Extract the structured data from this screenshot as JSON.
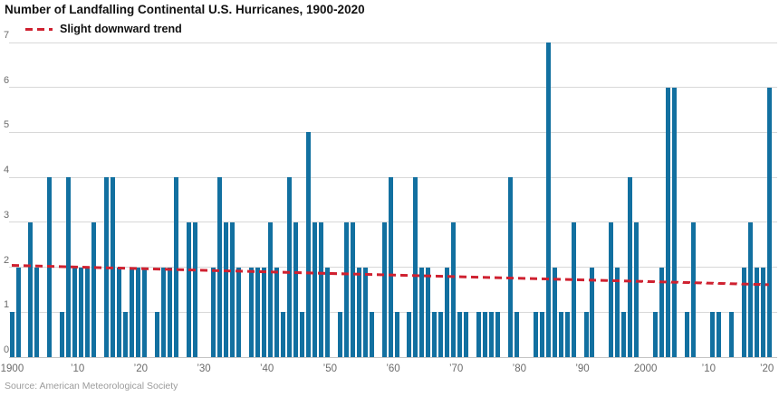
{
  "chart_data": {
    "type": "bar",
    "title": "Number of Landfalling Continental U.S. Hurricanes, 1900-2020",
    "legend_label": "Slight downward trend",
    "source": "Source: American Meteorological Society",
    "xlabel": "",
    "ylabel": "",
    "ylim": [
      0,
      7
    ],
    "y_ticks": [
      0,
      1,
      2,
      3,
      4,
      5,
      6,
      7
    ],
    "grid": "horizontal",
    "legend_position": "top-left",
    "years": [
      1900,
      1901,
      1902,
      1903,
      1904,
      1905,
      1906,
      1907,
      1908,
      1909,
      1910,
      1911,
      1912,
      1913,
      1914,
      1915,
      1916,
      1917,
      1918,
      1919,
      1920,
      1921,
      1922,
      1923,
      1924,
      1925,
      1926,
      1927,
      1928,
      1929,
      1930,
      1931,
      1932,
      1933,
      1934,
      1935,
      1936,
      1937,
      1938,
      1939,
      1940,
      1941,
      1942,
      1943,
      1944,
      1945,
      1946,
      1947,
      1948,
      1949,
      1950,
      1951,
      1952,
      1953,
      1954,
      1955,
      1956,
      1957,
      1958,
      1959,
      1960,
      1961,
      1962,
      1963,
      1964,
      1965,
      1966,
      1967,
      1968,
      1969,
      1970,
      1971,
      1972,
      1973,
      1974,
      1975,
      1976,
      1977,
      1978,
      1979,
      1980,
      1981,
      1982,
      1983,
      1984,
      1985,
      1986,
      1987,
      1988,
      1989,
      1990,
      1991,
      1992,
      1993,
      1994,
      1995,
      1996,
      1997,
      1998,
      1999,
      2000,
      2001,
      2002,
      2003,
      2004,
      2005,
      2006,
      2007,
      2008,
      2009,
      2010,
      2011,
      2012,
      2013,
      2014,
      2015,
      2016,
      2017,
      2018,
      2019,
      2020
    ],
    "values": [
      1,
      2,
      0,
      3,
      2,
      0,
      4,
      0,
      1,
      4,
      2,
      2,
      2,
      3,
      0,
      4,
      4,
      2,
      1,
      2,
      2,
      2,
      0,
      1,
      2,
      2,
      4,
      0,
      3,
      3,
      0,
      0,
      2,
      4,
      3,
      3,
      2,
      0,
      2,
      2,
      2,
      3,
      2,
      1,
      4,
      3,
      1,
      5,
      3,
      3,
      2,
      0,
      1,
      3,
      3,
      2,
      2,
      1,
      0,
      3,
      4,
      1,
      0,
      1,
      4,
      2,
      2,
      1,
      1,
      2,
      3,
      1,
      1,
      0,
      1,
      1,
      1,
      1,
      0,
      4,
      1,
      0,
      0,
      1,
      1,
      7,
      2,
      1,
      1,
      3,
      0,
      1,
      2,
      0,
      0,
      3,
      2,
      1,
      4,
      3,
      0,
      0,
      1,
      2,
      6,
      6,
      0,
      1,
      3,
      0,
      0,
      1,
      1,
      0,
      1,
      0,
      2,
      3,
      2,
      2,
      6
    ],
    "x_ticks": [
      {
        "year": 1900,
        "label": "1900"
      },
      {
        "year": 1910,
        "label": "’10"
      },
      {
        "year": 1920,
        "label": "’20"
      },
      {
        "year": 1930,
        "label": "’30"
      },
      {
        "year": 1940,
        "label": "’40"
      },
      {
        "year": 1950,
        "label": "’50"
      },
      {
        "year": 1960,
        "label": "’60"
      },
      {
        "year": 1970,
        "label": "’70"
      },
      {
        "year": 1980,
        "label": "’80"
      },
      {
        "year": 1990,
        "label": "’90"
      },
      {
        "year": 2000,
        "label": "2000"
      },
      {
        "year": 2010,
        "label": "’10"
      },
      {
        "year": 2020,
        "label": "’20"
      }
    ],
    "trend": {
      "start_year": 1900,
      "end_year": 2020,
      "start_value": 2.05,
      "end_value": 1.62
    },
    "colors": {
      "bar": "#1270a0",
      "trend": "#cf2130",
      "grid": "#d8d8d8",
      "baseline": "#c4c4c4",
      "axis_text": "#6b6b6b",
      "title_text": "#111111",
      "source_text": "#9b9b9b"
    }
  }
}
